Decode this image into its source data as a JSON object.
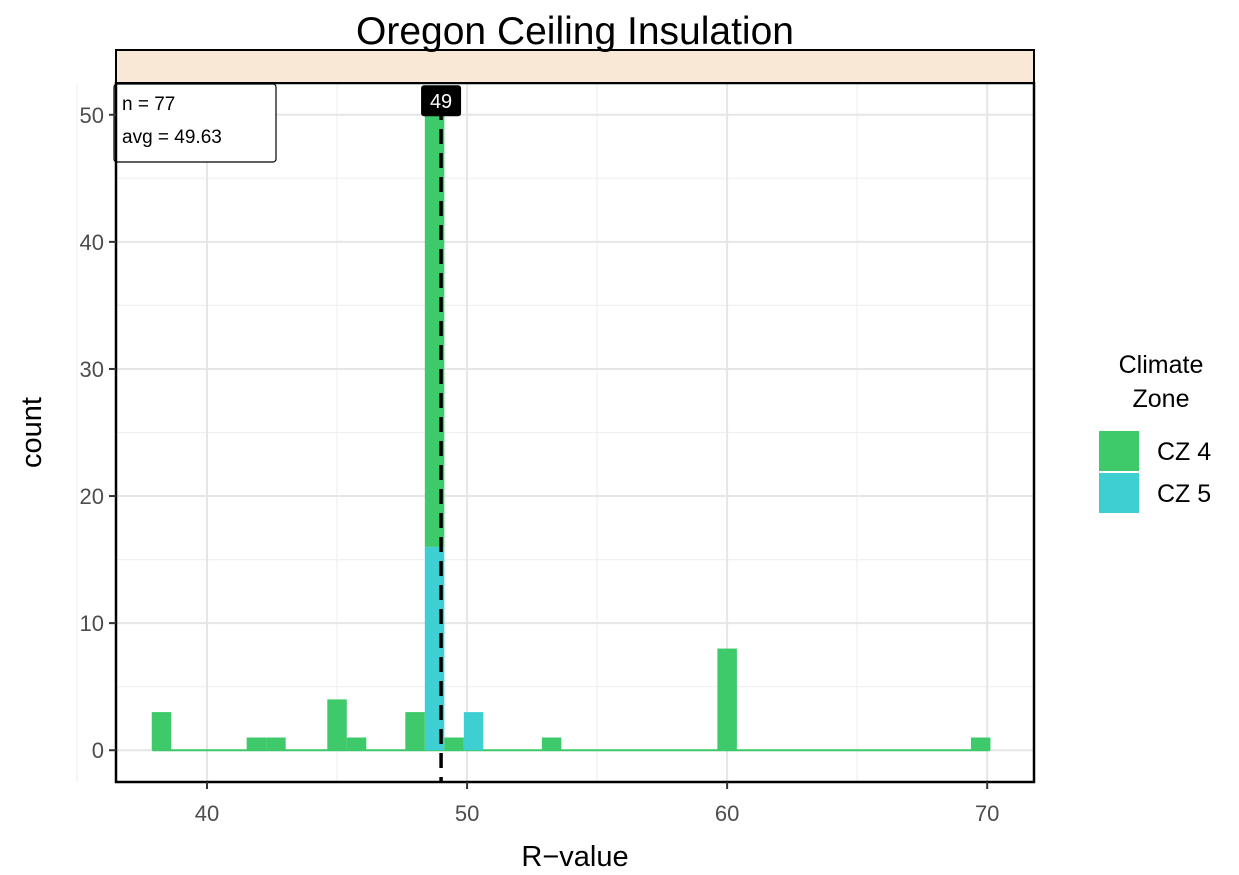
{
  "chart_data": {
    "type": "bar",
    "title": "Oregon Ceiling Insulation",
    "xlabel": "R−value",
    "ylabel": "count",
    "xlim": [
      36.5,
      71.8
    ],
    "ylim": [
      -2.5,
      52.5
    ],
    "x_ticks": [
      40,
      50,
      60,
      70
    ],
    "y_ticks": [
      0,
      10,
      20,
      30,
      40,
      50
    ],
    "bin_width": 0.75,
    "grid": true,
    "legend": {
      "title_lines": [
        "Climate",
        "Zone"
      ],
      "position": "right",
      "entries": [
        {
          "label": "CZ 4",
          "color": "#3ec96b"
        },
        {
          "label": "CZ 5",
          "color": "#3ecfd3"
        }
      ]
    },
    "series": [
      {
        "name": "CZ 4",
        "color": "#3ec96b",
        "points": [
          {
            "x": 38.25,
            "y": 3
          },
          {
            "x": 41.9,
            "y": 1
          },
          {
            "x": 42.65,
            "y": 1
          },
          {
            "x": 45.0,
            "y": 4
          },
          {
            "x": 45.75,
            "y": 1
          },
          {
            "x": 48.0,
            "y": 3
          },
          {
            "x": 48.75,
            "y": 34
          },
          {
            "x": 49.5,
            "y": 1
          },
          {
            "x": 53.25,
            "y": 1
          },
          {
            "x": 60.0,
            "y": 8
          },
          {
            "x": 69.75,
            "y": 1
          }
        ]
      },
      {
        "name": "CZ 5",
        "color": "#3ecfd3",
        "points": [
          {
            "x": 48.75,
            "y": 16
          },
          {
            "x": 50.25,
            "y": 3
          }
        ]
      }
    ],
    "baseline_range": [
      37.9,
      70.1
    ],
    "reference_line": {
      "x": 49,
      "style": "dashed",
      "label": "49"
    },
    "annotation": {
      "lines": [
        "n = 77",
        "avg = 49.63"
      ],
      "position": "top-left"
    }
  }
}
